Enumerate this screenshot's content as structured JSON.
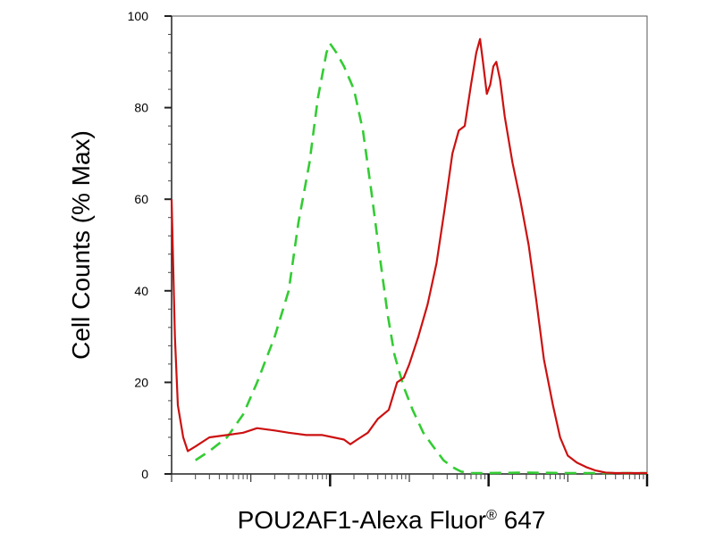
{
  "chart_data": {
    "type": "line",
    "xlabel": "POU2AF1-Alexa Fluor",
    "xlabel_superscript": "®",
    "xlabel_suffix": " 647",
    "ylabel": "Cell Counts (% Max)",
    "ylim": [
      0,
      100
    ],
    "xscale": "log",
    "xlim": [
      1,
      1000000
    ],
    "y_ticks": [
      0,
      20,
      40,
      60,
      80,
      100
    ],
    "x_major_ticks": [
      100,
      10000,
      1000000
    ],
    "grid": false,
    "legend": "none",
    "series": [
      {
        "color": "#33cc33",
        "line_style": "dashed",
        "points": [
          [
            2,
            3
          ],
          [
            3,
            5
          ],
          [
            5,
            8
          ],
          [
            8,
            13
          ],
          [
            12,
            20
          ],
          [
            20,
            30
          ],
          [
            30,
            40
          ],
          [
            40,
            55
          ],
          [
            55,
            68
          ],
          [
            70,
            82
          ],
          [
            90,
            92
          ],
          [
            100,
            94
          ],
          [
            120,
            92
          ],
          [
            150,
            89
          ],
          [
            200,
            84
          ],
          [
            260,
            75
          ],
          [
            330,
            62
          ],
          [
            420,
            48
          ],
          [
            530,
            35
          ],
          [
            650,
            26
          ],
          [
            850,
            19
          ],
          [
            1100,
            14
          ],
          [
            1500,
            9
          ],
          [
            2000,
            6
          ],
          [
            2700,
            3
          ],
          [
            3500,
            1.5
          ],
          [
            4500,
            0.5
          ],
          [
            6000,
            0.2
          ],
          [
            10000,
            0.2
          ],
          [
            30000,
            0.3
          ],
          [
            100000,
            0.2
          ],
          [
            1000000,
            0.2
          ]
        ]
      },
      {
        "color": "#cc1111",
        "line_style": "solid",
        "points": [
          [
            1,
            60
          ],
          [
            1.1,
            30
          ],
          [
            1.2,
            15
          ],
          [
            1.4,
            8
          ],
          [
            1.6,
            5
          ],
          [
            2,
            6
          ],
          [
            3,
            8
          ],
          [
            5,
            8.5
          ],
          [
            8,
            9
          ],
          [
            12,
            10
          ],
          [
            20,
            9.5
          ],
          [
            30,
            9
          ],
          [
            50,
            8.5
          ],
          [
            80,
            8.5
          ],
          [
            110,
            8
          ],
          [
            150,
            7.5
          ],
          [
            180,
            6.5
          ],
          [
            220,
            7.5
          ],
          [
            300,
            9
          ],
          [
            400,
            12
          ],
          [
            550,
            14
          ],
          [
            700,
            20
          ],
          [
            850,
            21
          ],
          [
            1000,
            24
          ],
          [
            1300,
            30
          ],
          [
            1700,
            37
          ],
          [
            2200,
            46
          ],
          [
            2800,
            58
          ],
          [
            3500,
            70
          ],
          [
            4200,
            75
          ],
          [
            5000,
            76
          ],
          [
            6000,
            85
          ],
          [
            7000,
            92
          ],
          [
            7800,
            95
          ],
          [
            8500,
            90
          ],
          [
            9500,
            83
          ],
          [
            10500,
            85
          ],
          [
            11500,
            89
          ],
          [
            12500,
            90
          ],
          [
            14000,
            86
          ],
          [
            16000,
            78
          ],
          [
            20000,
            68
          ],
          [
            25000,
            60
          ],
          [
            32000,
            50
          ],
          [
            40000,
            38
          ],
          [
            50000,
            25
          ],
          [
            65000,
            15
          ],
          [
            80000,
            8
          ],
          [
            100000,
            4
          ],
          [
            130000,
            2.5
          ],
          [
            170000,
            1.5
          ],
          [
            220000,
            0.8
          ],
          [
            300000,
            0.3
          ],
          [
            400000,
            0.2
          ],
          [
            1000000,
            0.2
          ]
        ]
      }
    ]
  }
}
